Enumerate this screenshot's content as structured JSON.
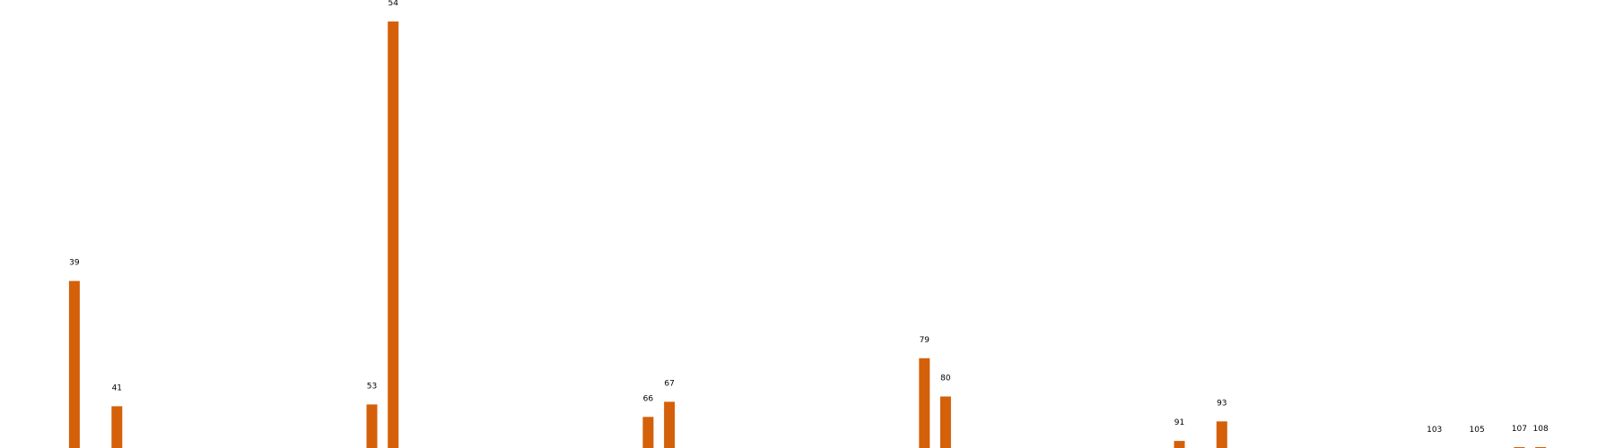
{
  "chart_data": {
    "type": "bar",
    "title": "",
    "xlabel": "",
    "ylabel": "",
    "grid": false,
    "legend": "none",
    "bar_color": "#d4600a",
    "points": [
      {
        "x": 39,
        "label": "39",
        "value": 188
      },
      {
        "x": 41,
        "label": "41",
        "value": 47
      },
      {
        "x": 53,
        "label": "53",
        "value": 49
      },
      {
        "x": 54,
        "label": "54",
        "value": 480
      },
      {
        "x": 66,
        "label": "66",
        "value": 35
      },
      {
        "x": 67,
        "label": "67",
        "value": 52
      },
      {
        "x": 79,
        "label": "79",
        "value": 101
      },
      {
        "x": 80,
        "label": "80",
        "value": 58
      },
      {
        "x": 91,
        "label": "91",
        "value": 8
      },
      {
        "x": 93,
        "label": "93",
        "value": 30
      },
      {
        "x": 103,
        "label": "103",
        "value": 0
      },
      {
        "x": 105,
        "label": "105",
        "value": 0
      },
      {
        "x": 107,
        "label": "107",
        "value": 1
      },
      {
        "x": 108,
        "label": "108",
        "value": 1
      }
    ],
    "xlim": [
      35.5,
      111.5
    ],
    "ylim": [
      0,
      480
    ]
  }
}
